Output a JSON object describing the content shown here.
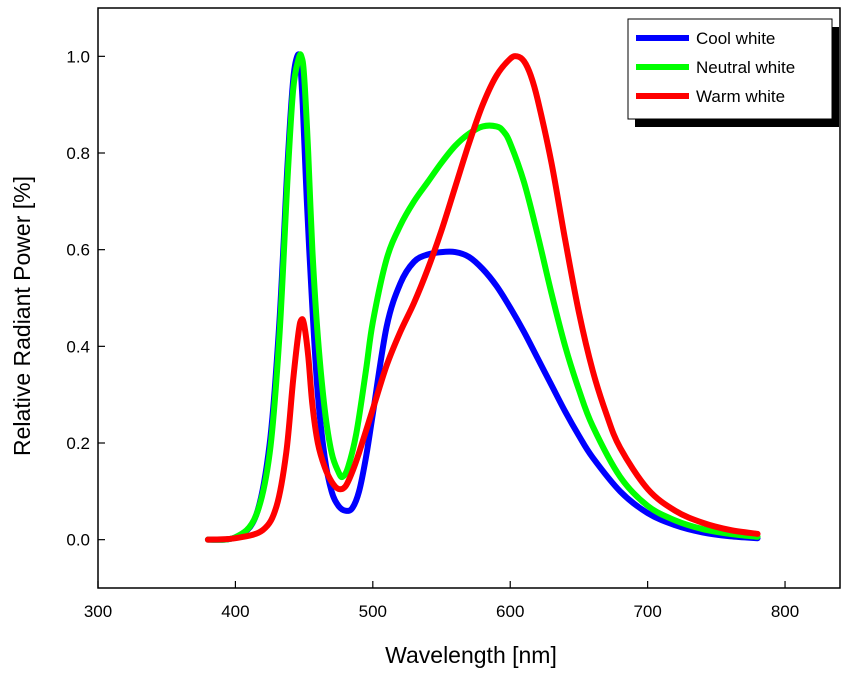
{
  "chart_data": {
    "type": "line",
    "title": "",
    "xlabel": "Wavelength [nm]",
    "ylabel": "Relative Radiant Power [%]",
    "xlim": [
      300,
      840
    ],
    "ylim": [
      -0.1,
      1.1
    ],
    "xticks": [
      300,
      400,
      500,
      600,
      700,
      800
    ],
    "xtick_labels": [
      "300",
      "400",
      "500",
      "600",
      "700",
      "800"
    ],
    "yticks": [
      0.0,
      0.2,
      0.4,
      0.6,
      0.8,
      1.0
    ],
    "ytick_labels": [
      "0.0",
      "0.2",
      "0.4",
      "0.6",
      "0.8",
      "1.0"
    ],
    "grid": false,
    "legend_position": "top-right",
    "series": [
      {
        "name": "Cool white",
        "color": "#0000ff",
        "x": [
          380,
          400,
          415,
          425,
          432,
          438,
          442,
          445,
          447,
          449,
          452,
          456,
          460,
          465,
          470,
          475,
          480,
          485,
          490,
          495,
          500,
          510,
          520,
          530,
          540,
          550,
          560,
          570,
          580,
          590,
          600,
          610,
          620,
          630,
          640,
          650,
          660,
          680,
          700,
          720,
          740,
          760,
          780
        ],
        "y": [
          0.0,
          0.005,
          0.05,
          0.2,
          0.45,
          0.78,
          0.95,
          1.0,
          0.99,
          0.9,
          0.7,
          0.48,
          0.3,
          0.17,
          0.1,
          0.07,
          0.06,
          0.065,
          0.1,
          0.17,
          0.26,
          0.44,
          0.53,
          0.575,
          0.59,
          0.595,
          0.595,
          0.585,
          0.56,
          0.525,
          0.48,
          0.43,
          0.375,
          0.32,
          0.265,
          0.215,
          0.17,
          0.1,
          0.055,
          0.03,
          0.015,
          0.007,
          0.003
        ]
      },
      {
        "name": "Neutral white",
        "color": "#00ff00",
        "x": [
          380,
          400,
          415,
          425,
          432,
          438,
          442,
          446,
          448,
          450,
          453,
          456,
          460,
          465,
          470,
          475,
          478,
          482,
          488,
          495,
          500,
          510,
          520,
          530,
          540,
          550,
          560,
          570,
          580,
          590,
          595,
          600,
          610,
          620,
          630,
          640,
          650,
          660,
          680,
          700,
          720,
          740,
          760,
          780
        ],
        "y": [
          0.0,
          0.005,
          0.05,
          0.18,
          0.42,
          0.75,
          0.93,
          0.995,
          1.0,
          0.96,
          0.8,
          0.6,
          0.42,
          0.27,
          0.18,
          0.14,
          0.13,
          0.15,
          0.22,
          0.35,
          0.45,
          0.58,
          0.65,
          0.7,
          0.74,
          0.78,
          0.815,
          0.84,
          0.855,
          0.855,
          0.845,
          0.82,
          0.74,
          0.63,
          0.51,
          0.4,
          0.31,
          0.235,
          0.13,
          0.07,
          0.04,
          0.022,
          0.012,
          0.006
        ]
      },
      {
        "name": "Warm white",
        "color": "#ff0000",
        "x": [
          380,
          400,
          420,
          430,
          437,
          442,
          446,
          448,
          450,
          453,
          456,
          460,
          465,
          470,
          475,
          480,
          485,
          490,
          500,
          510,
          520,
          530,
          540,
          550,
          560,
          570,
          580,
          590,
          600,
          605,
          610,
          615,
          620,
          630,
          640,
          650,
          660,
          670,
          680,
          700,
          720,
          740,
          760,
          780
        ],
        "y": [
          0.0,
          0.003,
          0.02,
          0.07,
          0.18,
          0.33,
          0.43,
          0.455,
          0.445,
          0.38,
          0.28,
          0.2,
          0.15,
          0.12,
          0.105,
          0.11,
          0.14,
          0.18,
          0.27,
          0.36,
          0.43,
          0.49,
          0.56,
          0.64,
          0.73,
          0.82,
          0.9,
          0.96,
          0.995,
          1.0,
          0.99,
          0.96,
          0.91,
          0.78,
          0.62,
          0.47,
          0.35,
          0.26,
          0.19,
          0.105,
          0.06,
          0.035,
          0.02,
          0.012
        ]
      }
    ]
  }
}
